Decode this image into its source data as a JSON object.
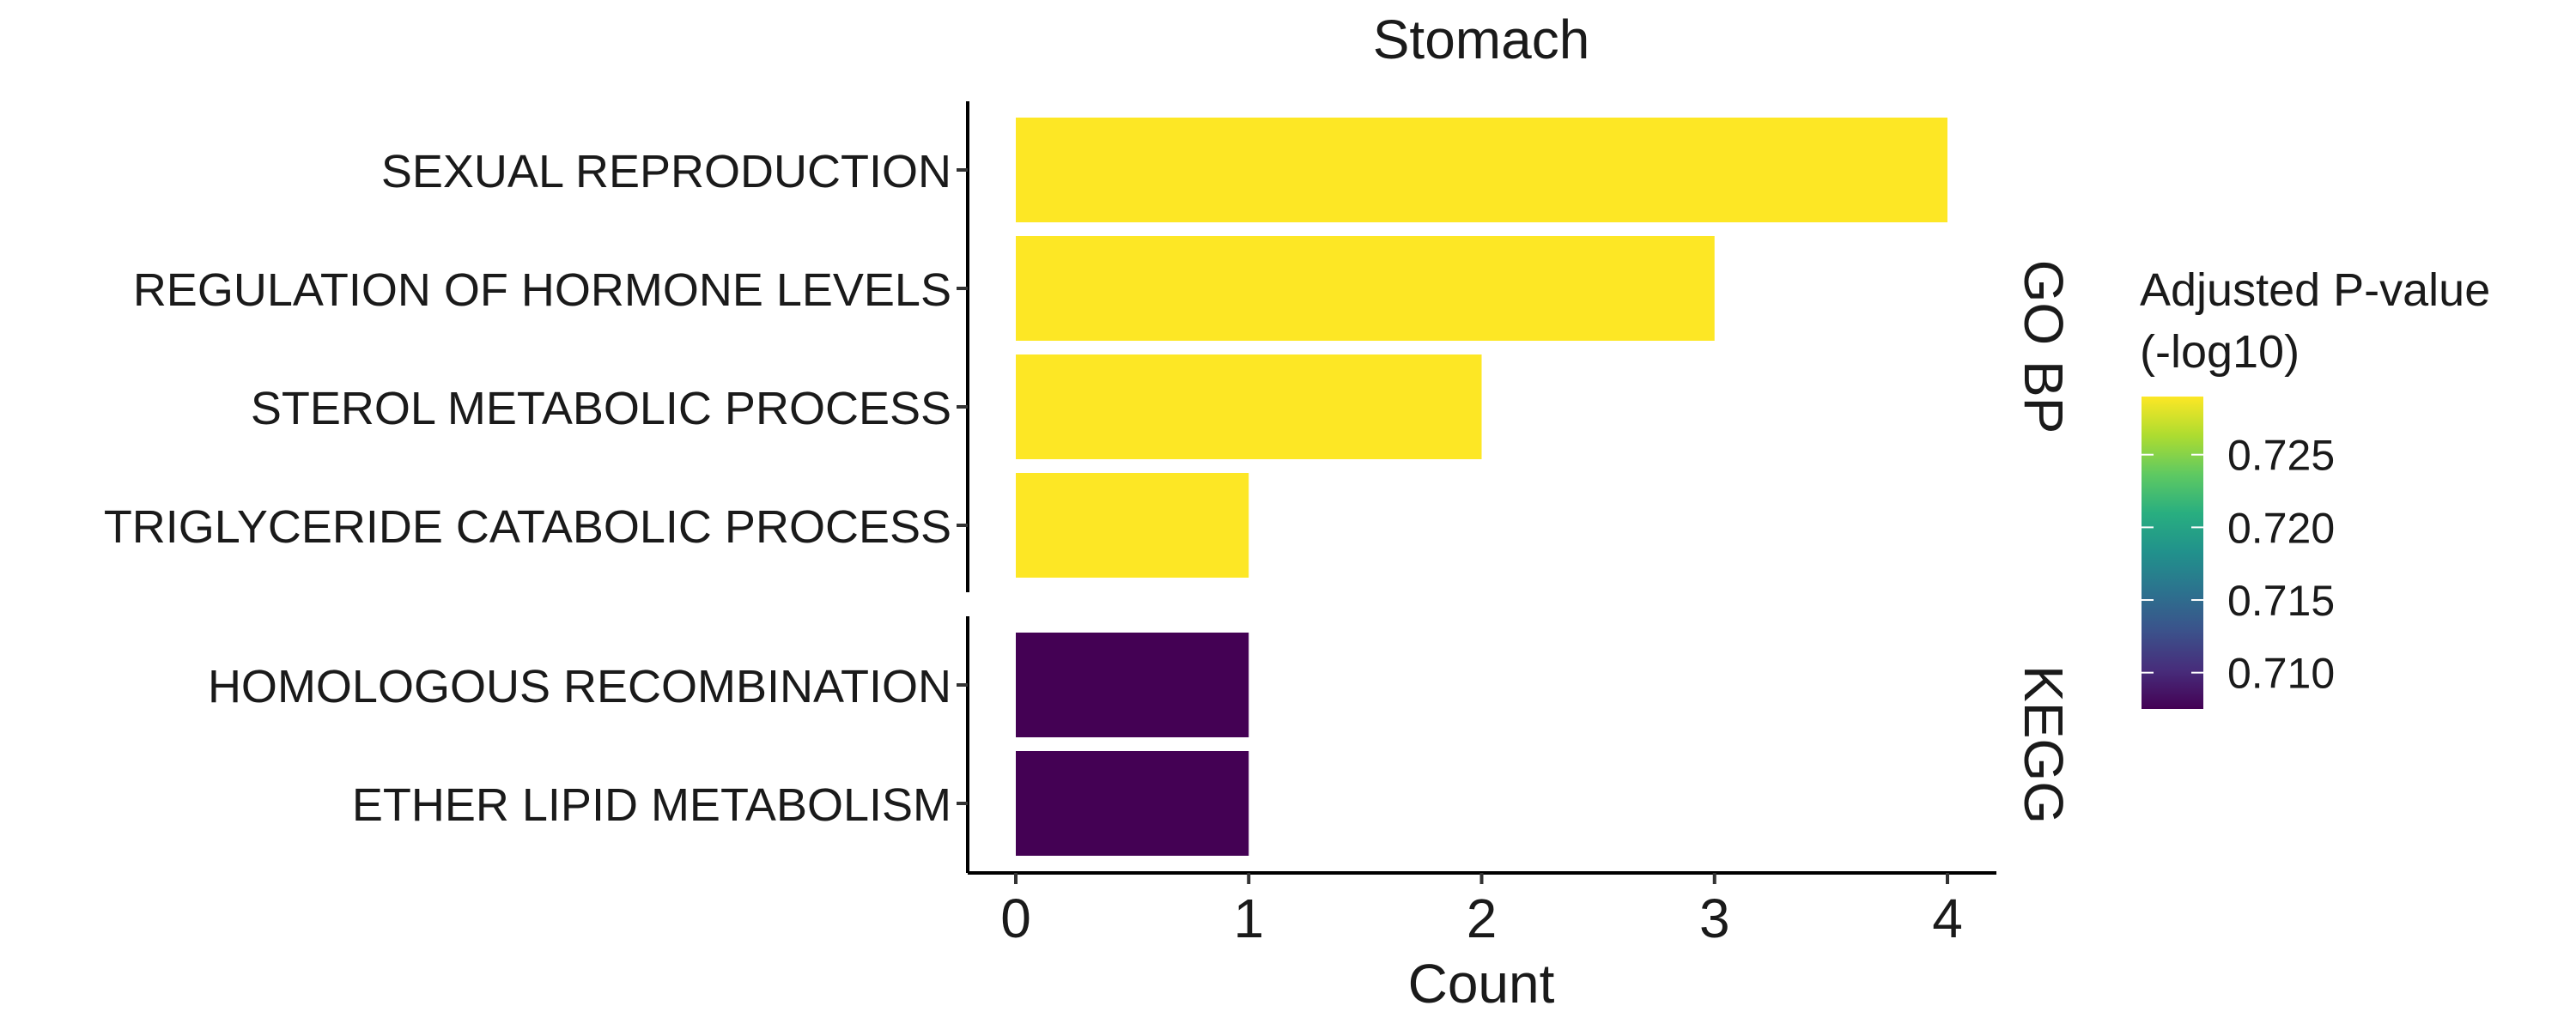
{
  "chart_data": {
    "type": "bar",
    "orientation": "horizontal",
    "title": "Stomach",
    "xlabel": "Count",
    "ylabel": "",
    "xlim": [
      -0.2,
      4.2
    ],
    "xticks": [
      "0",
      "1",
      "2",
      "3",
      "4"
    ],
    "grid": false,
    "facets": [
      {
        "label": "GO BP",
        "categories": [
          "SEXUAL REPRODUCTION",
          "REGULATION OF HORMONE LEVELS",
          "STEROL METABOLIC PROCESS",
          "TRIGLYCERIDE CATABOLIC PROCESS"
        ],
        "values": [
          4,
          3,
          2,
          1
        ],
        "neg_log10_padj": [
          0.729,
          0.729,
          0.729,
          0.729
        ]
      },
      {
        "label": "KEGG",
        "categories": [
          "HOMOLOGOUS RECOMBINATION",
          "ETHER LIPID METABOLISM"
        ],
        "values": [
          1,
          1
        ],
        "neg_log10_padj": [
          0.7075,
          0.7075
        ]
      }
    ],
    "legend": {
      "title_line1": "Adjusted P-value",
      "title_line2": "(-log10)",
      "position": "right",
      "colormap": "viridis",
      "range": [
        0.7075,
        0.729
      ],
      "ticks": [
        0.71,
        0.715,
        0.72,
        0.725
      ],
      "tick_labels": [
        "0.710",
        "0.715",
        "0.720",
        "0.725"
      ]
    }
  }
}
